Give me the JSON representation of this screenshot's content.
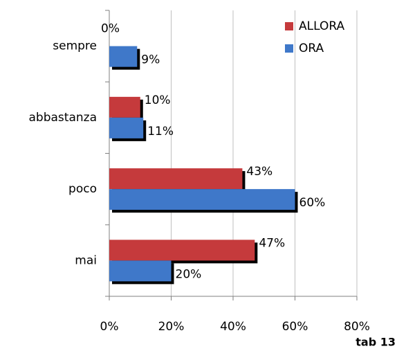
{
  "chart_data": {
    "type": "bar",
    "orientation": "horizontal",
    "categories": [
      "sempre",
      "abbastanza",
      "poco",
      "mai"
    ],
    "series": [
      {
        "name": "ALLORA",
        "color": "#c53a3c",
        "values": [
          0,
          10,
          43,
          47
        ],
        "value_labels": [
          "0%",
          "10%",
          "43%",
          "47%"
        ]
      },
      {
        "name": "ORA",
        "color": "#3f78c9",
        "values": [
          9,
          11,
          60,
          20
        ],
        "value_labels": [
          "9%",
          "11%",
          "60%",
          "20%"
        ]
      }
    ],
    "xlim": [
      0,
      80
    ],
    "xticks": [
      {
        "value": 0,
        "label": "0%"
      },
      {
        "value": 20,
        "label": "20%"
      },
      {
        "value": 40,
        "label": "40%"
      },
      {
        "value": 60,
        "label": "60%"
      },
      {
        "value": 80,
        "label": "80%"
      }
    ],
    "grid": true,
    "legend": "upper right",
    "annotation": "tab 13"
  }
}
